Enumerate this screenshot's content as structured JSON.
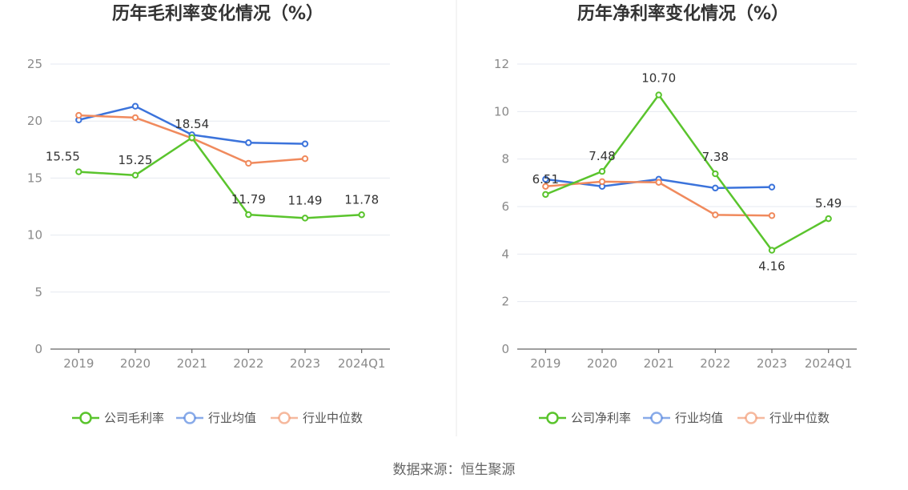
{
  "source": "数据来源：恒生聚源",
  "colors": {
    "company": "#5ac42d",
    "avg": "#3b73db",
    "median": "#f08a5d"
  },
  "chart_data": [
    {
      "type": "line",
      "title": "历年毛利率变化情况（%）",
      "categories": [
        "2019",
        "2020",
        "2021",
        "2022",
        "2023",
        "2024Q1"
      ],
      "ylim": [
        0,
        25
      ],
      "yticks": [
        0,
        5,
        10,
        15,
        20,
        25
      ],
      "grid": true,
      "legend_position": "bottom",
      "series": [
        {
          "name": "公司毛利率",
          "key": "company",
          "values": [
            15.55,
            15.25,
            18.54,
            11.79,
            11.49,
            11.78
          ],
          "labels": [
            "15.55",
            "15.25",
            "18.54",
            "11.79",
            "11.49",
            "11.78"
          ]
        },
        {
          "name": "行业均值",
          "key": "avg",
          "values": [
            20.1,
            21.3,
            18.8,
            18.1,
            18.0,
            null
          ]
        },
        {
          "name": "行业中位数",
          "key": "median",
          "values": [
            20.5,
            20.3,
            18.5,
            16.3,
            16.7,
            null
          ]
        }
      ]
    },
    {
      "type": "line",
      "title": "历年净利率变化情况（%）",
      "categories": [
        "2019",
        "2020",
        "2021",
        "2022",
        "2023",
        "2024Q1"
      ],
      "ylim": [
        0,
        12
      ],
      "yticks": [
        0,
        2,
        4,
        6,
        8,
        10,
        12
      ],
      "grid": true,
      "legend_position": "bottom",
      "series": [
        {
          "name": "公司净利率",
          "key": "company",
          "values": [
            6.51,
            7.48,
            10.7,
            7.38,
            4.16,
            5.49
          ],
          "labels": [
            "6.51",
            "7.48",
            "10.70",
            "7.38",
            "4.16",
            "5.49"
          ]
        },
        {
          "name": "行业均值",
          "key": "avg",
          "values": [
            7.15,
            6.85,
            7.15,
            6.78,
            6.82,
            null
          ]
        },
        {
          "name": "行业中位数",
          "key": "median",
          "values": [
            6.85,
            7.05,
            7.02,
            5.65,
            5.62,
            null
          ]
        }
      ]
    }
  ]
}
